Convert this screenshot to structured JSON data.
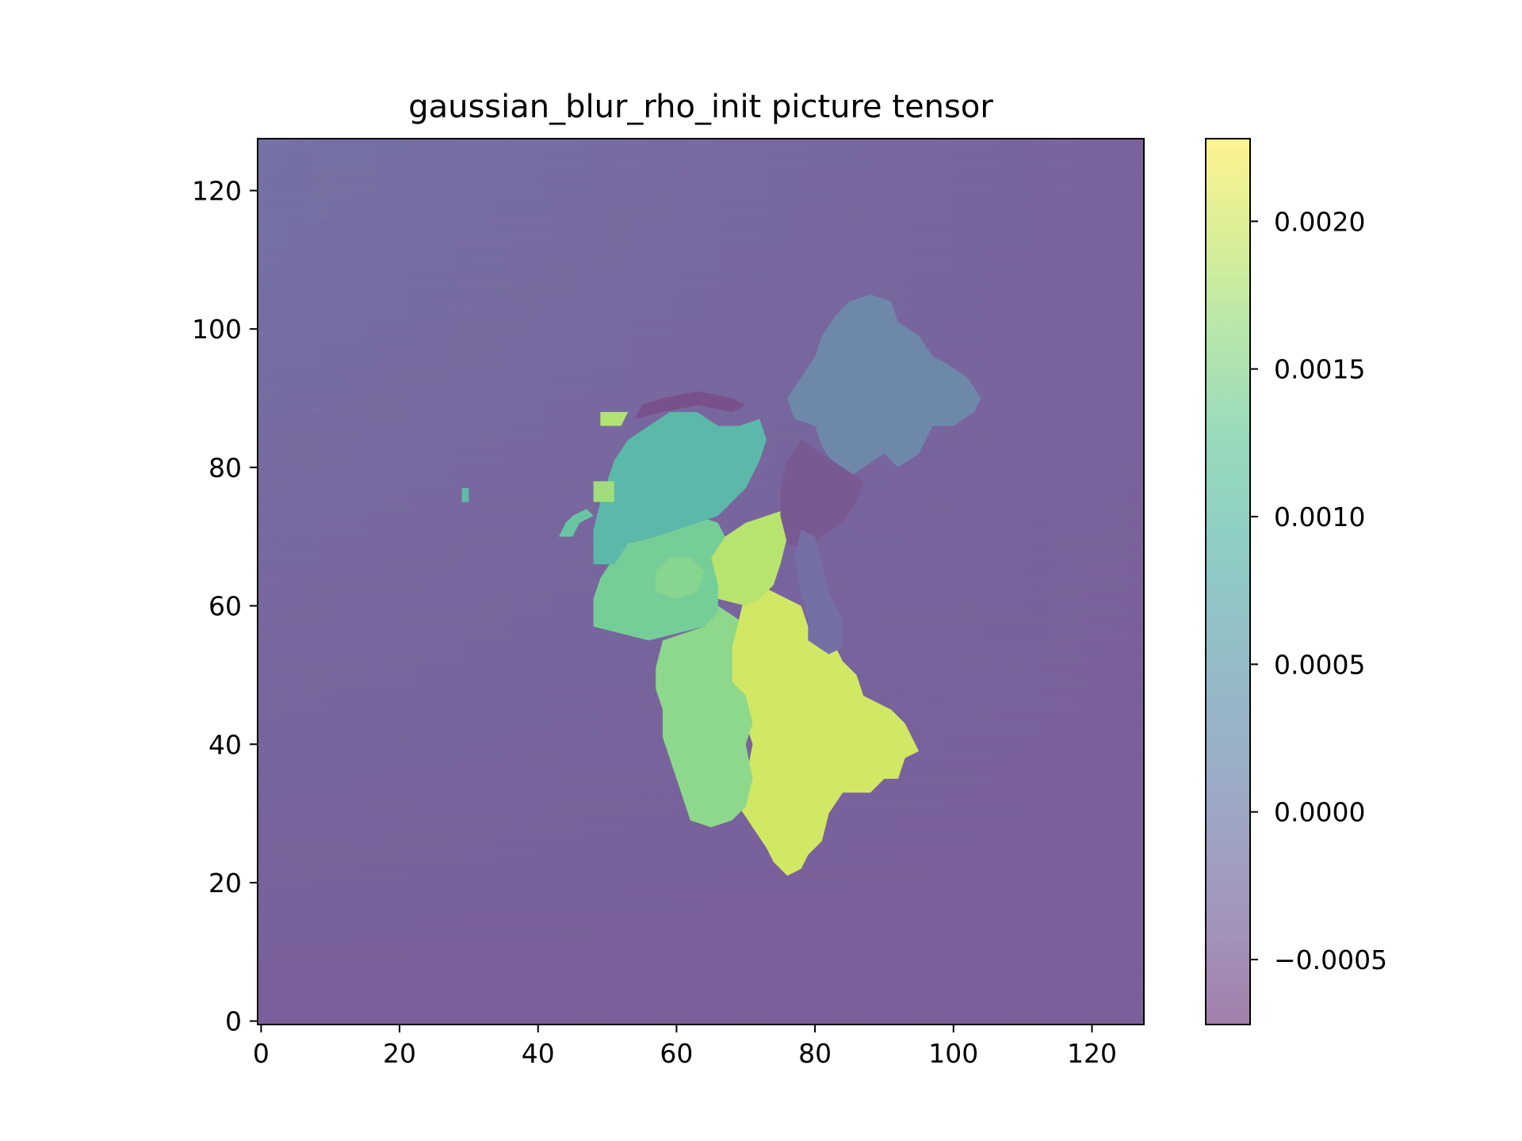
{
  "chart_data": {
    "type": "heatmap",
    "title": "gaussian_blur_rho_init picture tensor",
    "xlabel": "",
    "ylabel": "",
    "grid_shape": [
      128,
      128
    ],
    "xlim": [
      -0.5,
      127.5
    ],
    "ylim": [
      127.5,
      -0.5
    ],
    "x_ticks": [
      0,
      20,
      40,
      60,
      80,
      100,
      120
    ],
    "y_ticks": [
      0,
      20,
      40,
      60,
      80,
      100,
      120
    ],
    "x_tick_labels": [
      "0",
      "20",
      "40",
      "60",
      "80",
      "100",
      "120"
    ],
    "y_tick_labels": [
      "0",
      "20",
      "40",
      "60",
      "80",
      "100",
      "120"
    ],
    "colormap": "viridis",
    "alpha": 0.5,
    "colorbar": {
      "range": [
        -0.00072,
        0.00228
      ],
      "ticks": [
        -0.0005,
        0.0,
        0.0005,
        0.001,
        0.0015,
        0.002
      ],
      "tick_labels": [
        "−0.0005",
        "0.0000",
        "0.0005",
        "0.0010",
        "0.0015",
        "0.0020"
      ]
    },
    "background": {
      "top_left": -0.00018,
      "top_right": -0.00038,
      "bottom_left": -0.00045,
      "bottom_right": -0.0004
    },
    "regions": [
      {
        "name": "upper-right-lobe",
        "value": 0.002,
        "polygon": [
          [
            76,
            21
          ],
          [
            78,
            22
          ],
          [
            79,
            24
          ],
          [
            81,
            26
          ],
          [
            82,
            30
          ],
          [
            84,
            33
          ],
          [
            88,
            33
          ],
          [
            90,
            35
          ],
          [
            92,
            35
          ],
          [
            93,
            38
          ],
          [
            95,
            39
          ],
          [
            94,
            41
          ],
          [
            93,
            43
          ],
          [
            91,
            45
          ],
          [
            89,
            46
          ],
          [
            87,
            47
          ],
          [
            86,
            50
          ],
          [
            84,
            52
          ],
          [
            83,
            54
          ],
          [
            81,
            55
          ],
          [
            79,
            57
          ],
          [
            78,
            60
          ],
          [
            76,
            61
          ],
          [
            74,
            62
          ],
          [
            72,
            63
          ],
          [
            70,
            62
          ],
          [
            69,
            58
          ],
          [
            68,
            54
          ],
          [
            68,
            49
          ],
          [
            70,
            47
          ],
          [
            70,
            43
          ],
          [
            71,
            40
          ],
          [
            70,
            35
          ],
          [
            69,
            31
          ],
          [
            71,
            28
          ],
          [
            73,
            25
          ],
          [
            74,
            23
          ]
        ]
      },
      {
        "name": "upper-left-lobe",
        "value": 0.00155,
        "polygon": [
          [
            62,
            29
          ],
          [
            65,
            28
          ],
          [
            68,
            29
          ],
          [
            70,
            31
          ],
          [
            71,
            35
          ],
          [
            70,
            40
          ],
          [
            71,
            43
          ],
          [
            70,
            47
          ],
          [
            68,
            49
          ],
          [
            68,
            54
          ],
          [
            69,
            58
          ],
          [
            66,
            60
          ],
          [
            64,
            57
          ],
          [
            61,
            56
          ],
          [
            58,
            55
          ],
          [
            57,
            51
          ],
          [
            57,
            48
          ],
          [
            58,
            45
          ],
          [
            58,
            41
          ],
          [
            59,
            38
          ],
          [
            60,
            35
          ],
          [
            61,
            32
          ]
        ]
      },
      {
        "name": "lower-yellow-patch",
        "value": 0.00185,
        "polygon": [
          [
            66,
            61
          ],
          [
            70,
            60
          ],
          [
            72,
            61
          ],
          [
            74,
            63
          ],
          [
            75,
            66
          ],
          [
            76,
            70
          ],
          [
            76,
            74
          ],
          [
            73,
            73
          ],
          [
            70,
            72
          ],
          [
            67,
            70
          ],
          [
            65,
            67
          ],
          [
            65,
            63
          ]
        ]
      },
      {
        "name": "central-green-lobe",
        "value": 0.00135,
        "polygon": [
          [
            48,
            57
          ],
          [
            52,
            56
          ],
          [
            56,
            55
          ],
          [
            60,
            56
          ],
          [
            64,
            57
          ],
          [
            66,
            59
          ],
          [
            66,
            63
          ],
          [
            65,
            67
          ],
          [
            67,
            70
          ],
          [
            66,
            72
          ],
          [
            63,
            73
          ],
          [
            60,
            72
          ],
          [
            57,
            70
          ],
          [
            53,
            69
          ],
          [
            51,
            67
          ],
          [
            49,
            64
          ],
          [
            48,
            61
          ]
        ]
      },
      {
        "name": "central-hotspot",
        "value": 0.0015,
        "polygon": [
          [
            57,
            62
          ],
          [
            60,
            61
          ],
          [
            63,
            62
          ],
          [
            64,
            65
          ],
          [
            62,
            67
          ],
          [
            59,
            67
          ],
          [
            57,
            65
          ]
        ]
      },
      {
        "name": "left-teal-lobe",
        "value": 0.00095,
        "polygon": [
          [
            48,
            66
          ],
          [
            51,
            66
          ],
          [
            53,
            69
          ],
          [
            57,
            70
          ],
          [
            60,
            71
          ],
          [
            63,
            72
          ],
          [
            66,
            73
          ],
          [
            68,
            75
          ],
          [
            70,
            77
          ],
          [
            72,
            81
          ],
          [
            73,
            84
          ],
          [
            72,
            87
          ],
          [
            69,
            86
          ],
          [
            66,
            86
          ],
          [
            63,
            88
          ],
          [
            59,
            88
          ],
          [
            56,
            86
          ],
          [
            53,
            84
          ],
          [
            51,
            81
          ],
          [
            50,
            78
          ],
          [
            49,
            75
          ],
          [
            48,
            71
          ]
        ]
      },
      {
        "name": "left-yellow-dot",
        "value": 0.0017,
        "polygon": [
          [
            48,
            75
          ],
          [
            51,
            75
          ],
          [
            51,
            78
          ],
          [
            48,
            78
          ]
        ]
      },
      {
        "name": "left-small-tail",
        "value": 0.0012,
        "polygon": [
          [
            43,
            70
          ],
          [
            45,
            70
          ],
          [
            46,
            72
          ],
          [
            48,
            73
          ],
          [
            47,
            74
          ],
          [
            45,
            73
          ],
          [
            44,
            72
          ]
        ]
      },
      {
        "name": "lower-left-dot",
        "value": 0.0018,
        "polygon": [
          [
            49,
            86
          ],
          [
            52,
            86
          ],
          [
            53,
            88
          ],
          [
            49,
            88
          ]
        ]
      },
      {
        "name": "lower-right-lobe",
        "value": 0.00015,
        "polygon": [
          [
            84,
            78
          ],
          [
            87,
            80
          ],
          [
            90,
            82
          ],
          [
            92,
            80
          ],
          [
            95,
            82
          ],
          [
            97,
            86
          ],
          [
            100,
            86
          ],
          [
            103,
            88
          ],
          [
            104,
            90
          ],
          [
            102,
            93
          ],
          [
            99,
            95
          ],
          [
            97,
            96
          ],
          [
            95,
            99
          ],
          [
            92,
            101
          ],
          [
            91,
            104
          ],
          [
            88,
            105
          ],
          [
            85,
            104
          ],
          [
            83,
            102
          ],
          [
            81,
            99
          ],
          [
            80,
            96
          ],
          [
            78,
            93
          ],
          [
            76,
            90
          ],
          [
            77,
            87
          ],
          [
            80,
            86
          ],
          [
            81,
            83
          ],
          [
            83,
            80
          ]
        ]
      },
      {
        "name": "middle-dark-patch",
        "value": -0.0005,
        "polygon": [
          [
            76,
            69
          ],
          [
            79,
            68
          ],
          [
            81,
            70
          ],
          [
            84,
            72
          ],
          [
            86,
            75
          ],
          [
            87,
            78
          ],
          [
            84,
            80
          ],
          [
            81,
            82
          ],
          [
            78,
            84
          ],
          [
            76,
            81
          ],
          [
            75,
            77
          ],
          [
            75,
            73
          ]
        ]
      },
      {
        "name": "upper-purple-strip",
        "value": -0.0002,
        "polygon": [
          [
            79,
            55
          ],
          [
            82,
            53
          ],
          [
            84,
            54
          ],
          [
            84,
            58
          ],
          [
            82,
            62
          ],
          [
            81,
            66
          ],
          [
            80,
            70
          ],
          [
            78,
            71
          ],
          [
            77,
            67
          ],
          [
            78,
            62
          ],
          [
            79,
            58
          ]
        ]
      },
      {
        "name": "dark-trough",
        "value": -0.0006,
        "polygon": [
          [
            54,
            87
          ],
          [
            58,
            88
          ],
          [
            63,
            89
          ],
          [
            68,
            88
          ],
          [
            70,
            89
          ],
          [
            68,
            90
          ],
          [
            63,
            91
          ],
          [
            58,
            90
          ],
          [
            55,
            89
          ]
        ]
      },
      {
        "name": "isolated-dot",
        "value": 0.001,
        "polygon": [
          [
            29,
            75
          ],
          [
            30,
            75
          ],
          [
            30,
            77
          ],
          [
            29,
            77
          ]
        ]
      }
    ]
  }
}
